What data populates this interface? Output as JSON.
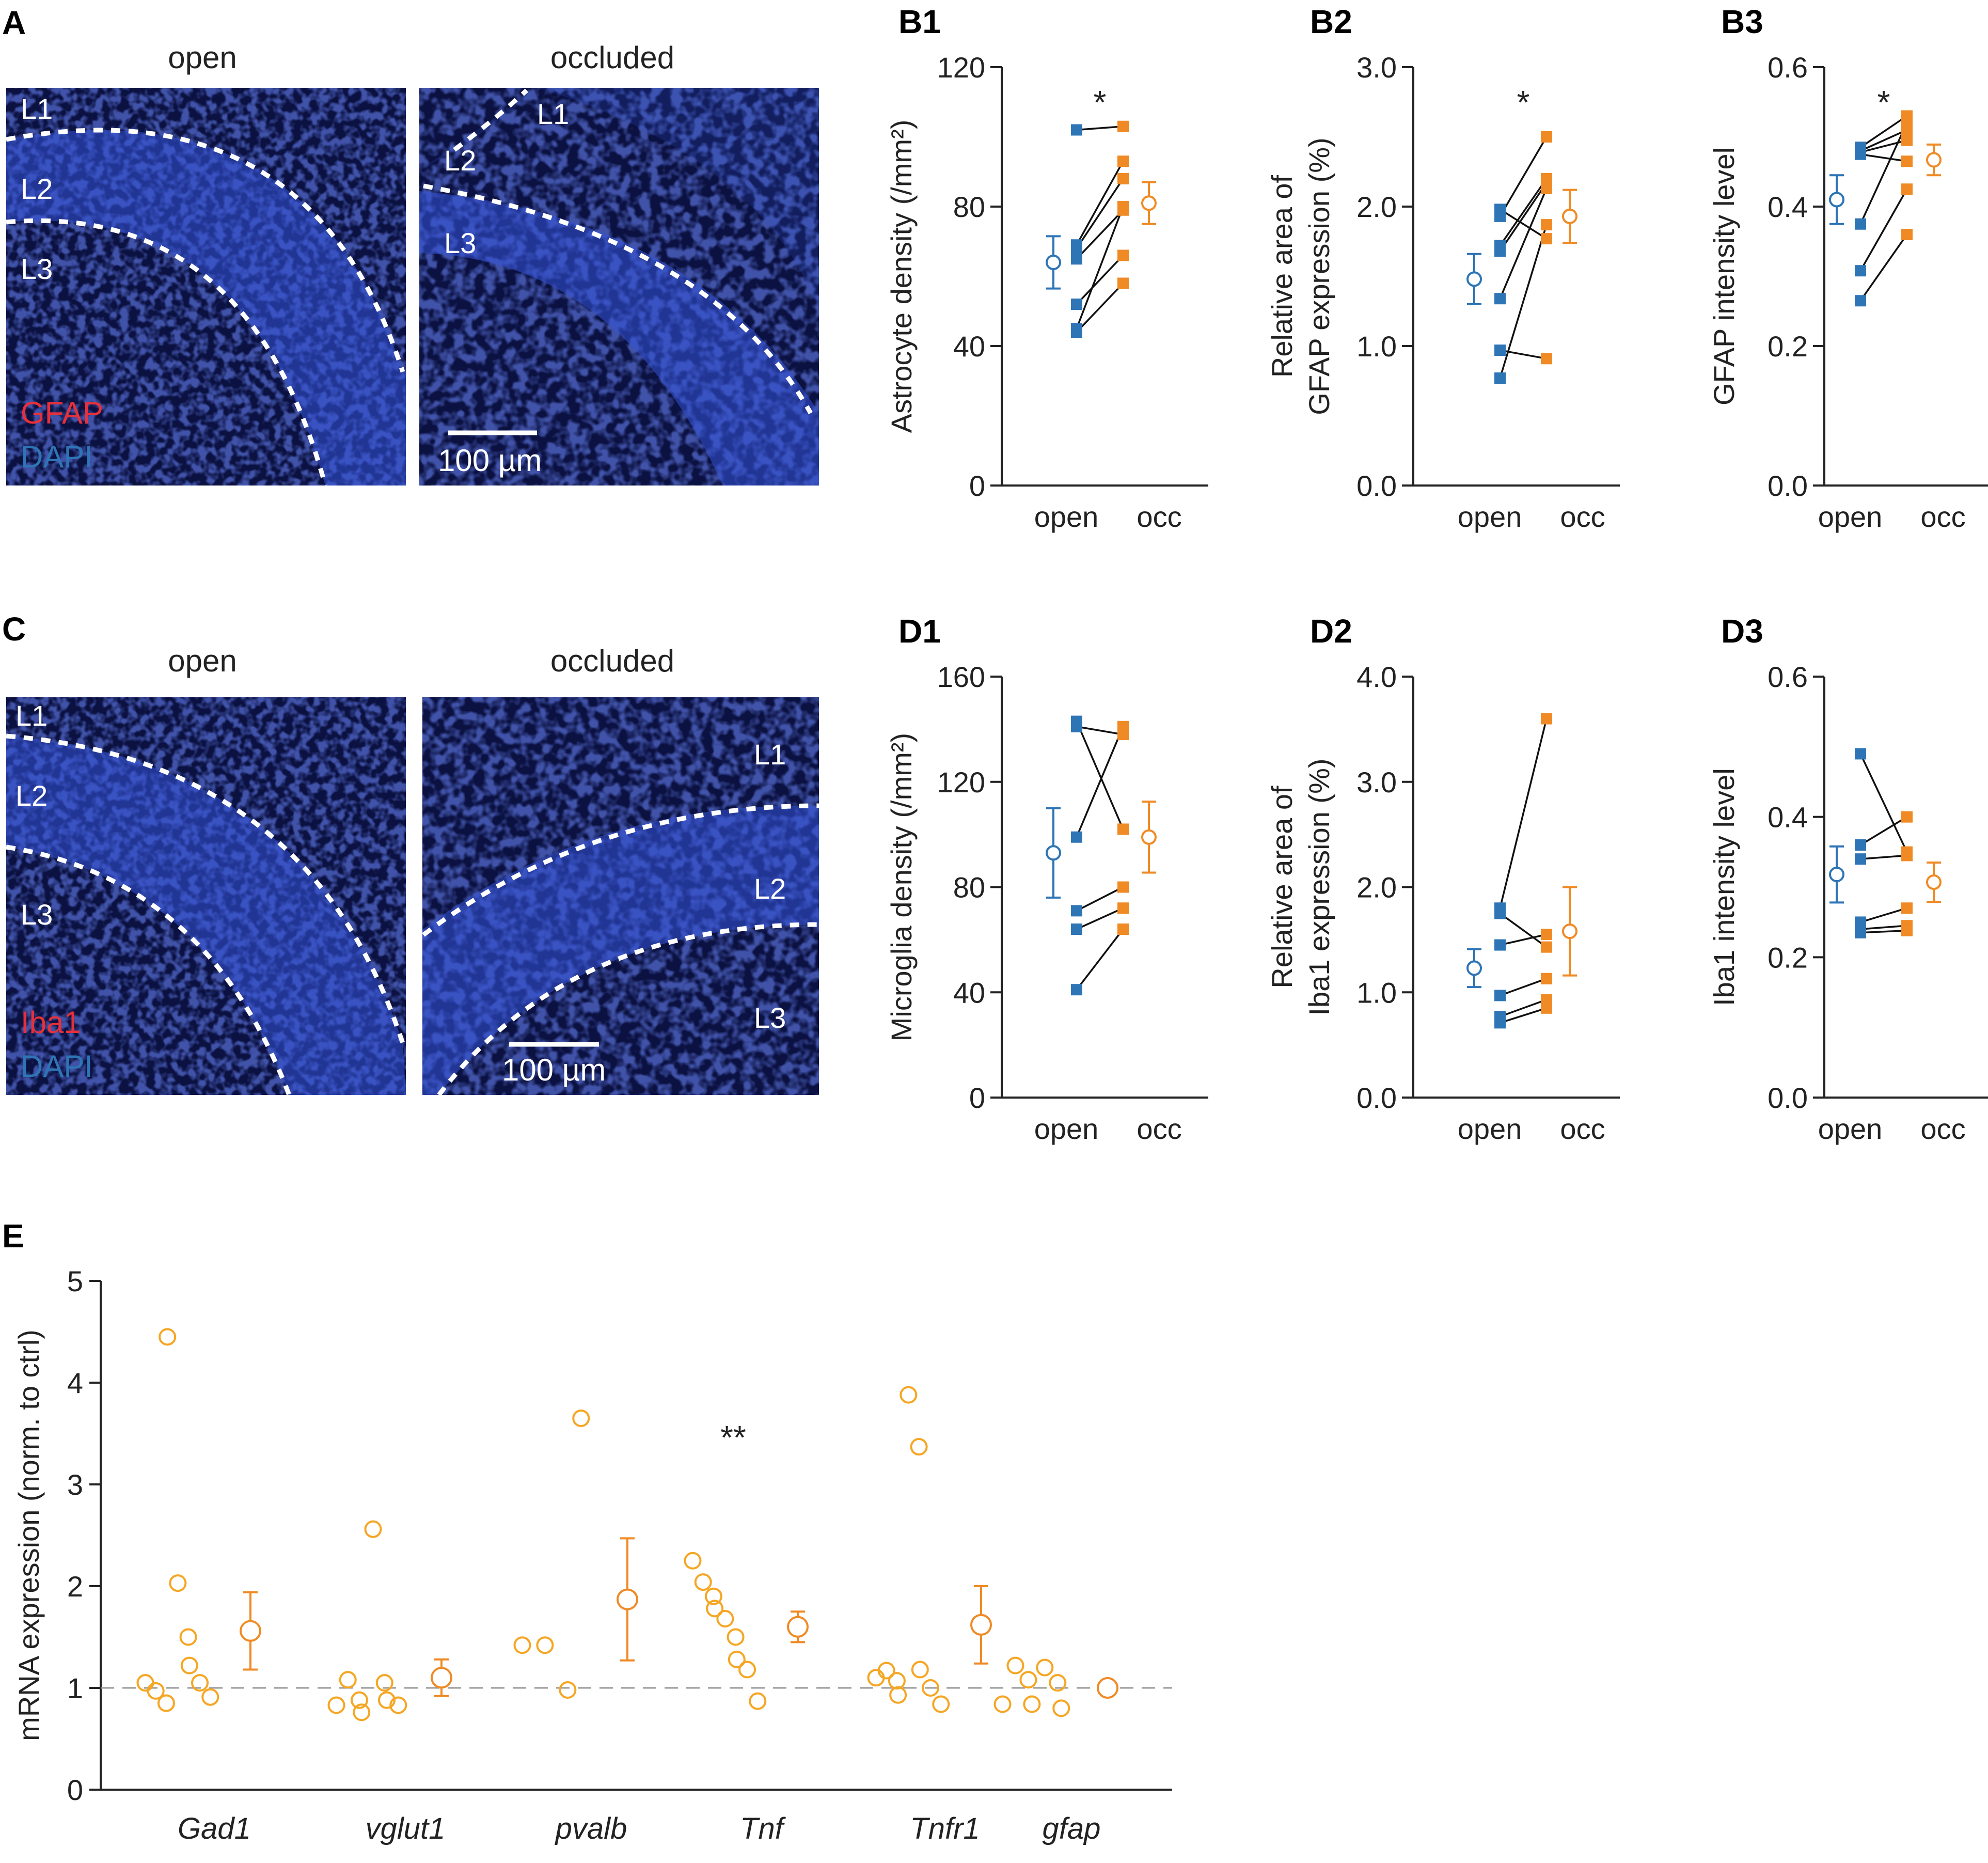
{
  "colors": {
    "open": "#2E75B6",
    "occ": "#F08A24",
    "e_marker": "#F5A623",
    "axis": "#222222",
    "gfap": "#E8303A",
    "dapi": "#2E75B6"
  },
  "images": {
    "A": {
      "letter": "A",
      "open_title": "open",
      "occluded_title": "occluded",
      "open_layers": [
        "L1",
        "L2",
        "L3"
      ],
      "occluded_layers": [
        "L1",
        "L2",
        "L3"
      ],
      "stain": "GFAP",
      "counterstain": "DAPI",
      "scale_bar": "100 µm"
    },
    "C": {
      "letter": "C",
      "open_title": "open",
      "occluded_title": "occluded",
      "open_layers": [
        "L1",
        "L2",
        "L3"
      ],
      "occluded_layers": [
        "L1",
        "L2",
        "L3"
      ],
      "stain": "Iba1",
      "counterstain": "DAPI",
      "scale_bar": "100 µm"
    }
  },
  "chart_data": [
    {
      "id": "B1",
      "type": "scatter",
      "letter": "B1",
      "ylabel": "Astrocyte density (/mm²)",
      "categories": [
        "open",
        "occ"
      ],
      "yticks": [
        "0",
        "40",
        "80",
        "120"
      ],
      "ylim": [
        0,
        120
      ],
      "significance": "*",
      "pairs": [
        [
          102,
          103
        ],
        [
          69,
          93
        ],
        [
          68,
          88
        ],
        [
          65,
          79
        ],
        [
          52,
          66
        ],
        [
          45,
          80
        ],
        [
          44,
          58
        ]
      ],
      "mean_open": 64,
      "err_open": 7.5,
      "mean_occ": 81,
      "err_occ": 6
    },
    {
      "id": "B2",
      "type": "scatter",
      "letter": "B2",
      "ylabel": [
        "Relative area of",
        "GFAP expression (%)"
      ],
      "categories": [
        "open",
        "occ"
      ],
      "yticks": [
        "0.0",
        "1.0",
        "2.0",
        "3.0"
      ],
      "ylim": [
        0,
        3
      ],
      "significance": "*",
      "pairs": [
        [
          1.98,
          1.77
        ],
        [
          1.93,
          2.5
        ],
        [
          1.72,
          2.2
        ],
        [
          1.68,
          2.17
        ],
        [
          1.34,
          2.13
        ],
        [
          0.97,
          0.91
        ],
        [
          0.77,
          1.87
        ]
      ],
      "mean_open": 1.48,
      "err_open": 0.18,
      "mean_occ": 1.93,
      "err_occ": 0.19
    },
    {
      "id": "B3",
      "type": "scatter",
      "letter": "B3",
      "ylabel": "GFAP intensity level",
      "categories": [
        "open",
        "occ"
      ],
      "yticks": [
        "0.0",
        "0.2",
        "0.4",
        "0.6"
      ],
      "ylim": [
        0,
        0.6
      ],
      "significance": "*",
      "pairs": [
        [
          0.485,
          0.53
        ],
        [
          0.48,
          0.51
        ],
        [
          0.478,
          0.495
        ],
        [
          0.475,
          0.465
        ],
        [
          0.375,
          0.52
        ],
        [
          0.308,
          0.425
        ],
        [
          0.265,
          0.36
        ]
      ],
      "mean_open": 0.41,
      "err_open": 0.035,
      "mean_occ": 0.467,
      "err_occ": 0.022
    },
    {
      "id": "D1",
      "type": "scatter",
      "letter": "D1",
      "ylabel": "Microglia density (/mm²)",
      "categories": [
        "open",
        "occ"
      ],
      "yticks": [
        "0",
        "40",
        "80",
        "120",
        "160"
      ],
      "ylim": [
        0,
        160
      ],
      "significance": "",
      "pairs": [
        [
          143,
          102
        ],
        [
          141,
          138
        ],
        [
          99,
          141
        ],
        [
          71,
          80
        ],
        [
          64,
          72
        ],
        [
          41,
          64
        ]
      ],
      "mean_open": 93,
      "err_open": 17,
      "mean_occ": 99,
      "err_occ": 13.5
    },
    {
      "id": "D2",
      "type": "scatter",
      "letter": "D2",
      "ylabel": [
        "Relative area of",
        "Iba1 expression (%)"
      ],
      "categories": [
        "open",
        "occ"
      ],
      "yticks": [
        "0.0",
        "1.0",
        "2.0",
        "3.0",
        "4.0"
      ],
      "ylim": [
        0,
        4
      ],
      "significance": "",
      "pairs": [
        [
          1.8,
          3.6
        ],
        [
          1.75,
          1.43
        ],
        [
          1.45,
          1.55
        ],
        [
          0.97,
          1.13
        ],
        [
          0.77,
          0.93
        ],
        [
          0.71,
          0.85
        ]
      ],
      "mean_open": 1.23,
      "err_open": 0.18,
      "mean_occ": 1.58,
      "err_occ": 0.42
    },
    {
      "id": "D3",
      "type": "scatter",
      "letter": "D3",
      "ylabel": "Iba1 intensity level",
      "categories": [
        "open",
        "occ"
      ],
      "yticks": [
        "0.0",
        "0.2",
        "0.4",
        "0.6"
      ],
      "ylim": [
        0,
        0.6
      ],
      "significance": "",
      "pairs": [
        [
          0.49,
          0.35
        ],
        [
          0.36,
          0.4
        ],
        [
          0.34,
          0.345
        ],
        [
          0.25,
          0.27
        ],
        [
          0.24,
          0.245
        ],
        [
          0.235,
          0.238
        ]
      ],
      "mean_open": 0.318,
      "err_open": 0.04,
      "mean_occ": 0.307,
      "err_occ": 0.028
    },
    {
      "id": "E",
      "type": "scatter",
      "letter": "E",
      "ylabel": "mRNA expression (norm. to ctrl)",
      "categories": [
        "Gad1",
        "vglut1",
        "pvalb",
        "Tnf",
        "Tnfr1",
        "gfap"
      ],
      "yticks": [
        "0",
        "1",
        "2",
        "3",
        "4",
        "5"
      ],
      "ylim": [
        0,
        5
      ],
      "reference_line": 1,
      "groups": [
        {
          "name": "Gad1",
          "points": [
            1.05,
            0.97,
            0.85,
            4.45,
            2.03,
            1.5,
            1.22,
            1.05,
            0.91
          ],
          "mean": 1.56,
          "err": 0.38,
          "significance": ""
        },
        {
          "name": "vglut1",
          "points": [
            0.83,
            1.08,
            0.88,
            0.76,
            2.56,
            1.05,
            0.88,
            0.83
          ],
          "mean": 1.1,
          "err": 0.18,
          "significance": ""
        },
        {
          "name": "pvalb",
          "points": [
            1.42,
            1.42,
            0.98,
            3.65
          ],
          "mean": 1.87,
          "err": 0.6,
          "significance": ""
        },
        {
          "name": "Tnf",
          "points": [
            2.25,
            2.04,
            1.9,
            1.78,
            1.68,
            1.5,
            1.28,
            1.18,
            0.87
          ],
          "mean": 1.6,
          "err": 0.15,
          "significance": "**"
        },
        {
          "name": "Tnfr1",
          "points": [
            1.1,
            1.17,
            1.07,
            0.93,
            3.88,
            3.37,
            1.18,
            1.0,
            0.84
          ],
          "mean": 1.62,
          "err": 0.38,
          "significance": ""
        },
        {
          "name": "gfap",
          "points": [
            0.84,
            1.22,
            1.08,
            0.84,
            1.2,
            1.05,
            0.8
          ],
          "mean": 1.0,
          "err": 0.05,
          "significance": ""
        }
      ]
    }
  ]
}
